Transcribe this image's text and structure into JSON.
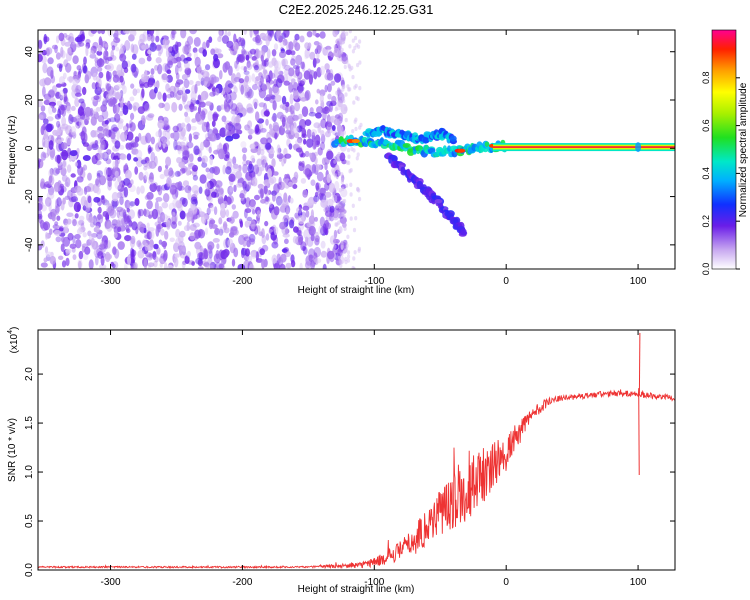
{
  "title": "C2E2.2025.246.12.25.G31",
  "chart_data": [
    {
      "type": "heatmap",
      "title": "C2E2.2025.246.12.25.G31",
      "xlabel": "Height of straight line (km)",
      "ylabel": "Frequency (Hz)",
      "xlim": [
        -355,
        128
      ],
      "ylim": [
        -50,
        49
      ],
      "x_ticks": [
        -300,
        -200,
        -100,
        0,
        100
      ],
      "x_tick_labels": [
        "-300",
        "-200",
        "-100",
        "0",
        "100"
      ],
      "y_ticks": [
        -40,
        -20,
        0,
        20,
        40
      ],
      "y_tick_labels": [
        "-40",
        "-20",
        "0",
        "20",
        "40"
      ],
      "colorbar": {
        "label": "Normalized spectral amplitude",
        "range": [
          0,
          1
        ],
        "ticks": [
          0.0,
          0.2,
          0.4,
          0.6,
          0.8
        ],
        "tick_labels": [
          "0.0",
          "0.2",
          "0.4",
          "0.6",
          "0.8"
        ]
      },
      "features": {
        "noise_region_x": [
          -355,
          -130
        ],
        "noise_amplitude": 0.1,
        "carrier_line": {
          "x": [
            -10,
            128
          ],
          "freq": 0.5,
          "amplitude": 0.95
        },
        "main_branch": [
          [
            -130,
            3
          ],
          [
            -110,
            3
          ],
          [
            -95,
            2
          ],
          [
            -80,
            1
          ],
          [
            -65,
            -1
          ],
          [
            -50,
            -2
          ],
          [
            -35,
            -1
          ],
          [
            -25,
            0
          ],
          [
            -10,
            1
          ],
          [
            0,
            1
          ]
        ],
        "upper_branch": [
          [
            -105,
            6
          ],
          [
            -95,
            7
          ],
          [
            -85,
            6
          ],
          [
            -75,
            5
          ],
          [
            -65,
            4
          ],
          [
            -55,
            5
          ],
          [
            -48,
            6
          ],
          [
            -40,
            3
          ]
        ],
        "lower_branch": [
          [
            -90,
            -3
          ],
          [
            -80,
            -8
          ],
          [
            -70,
            -13
          ],
          [
            -60,
            -18
          ],
          [
            -52,
            -22
          ],
          [
            -45,
            -27
          ],
          [
            -38,
            -31
          ],
          [
            -32,
            -35
          ]
        ]
      }
    },
    {
      "type": "line",
      "xlabel": "Height of straight line (km)",
      "ylabel": "SNR (10 * v/v)",
      "y_multiplier": "(x10",
      "y_multiplier_exponent": "4",
      "y_multiplier_close": ")",
      "xlim": [
        -355,
        128
      ],
      "ylim": [
        0,
        2.45
      ],
      "x_ticks": [
        -300,
        -200,
        -100,
        0,
        100
      ],
      "x_tick_labels": [
        "-300",
        "-200",
        "-100",
        "0",
        "100"
      ],
      "y_ticks": [
        0.0,
        0.5,
        1.0,
        1.5,
        2.0
      ],
      "y_tick_labels": [
        "0.0",
        "0.5",
        "1.0",
        "1.5",
        "2.0"
      ],
      "color": "#ee3333",
      "envelope": {
        "x": [
          -355,
          -150,
          -110,
          -95,
          -80,
          -70,
          -60,
          -50,
          -40,
          -30,
          -20,
          -10,
          0,
          10,
          20,
          30,
          40,
          60,
          80,
          100,
          128
        ],
        "y": [
          0.03,
          0.03,
          0.05,
          0.1,
          0.2,
          0.3,
          0.45,
          0.6,
          0.7,
          0.8,
          0.95,
          1.05,
          1.2,
          1.4,
          1.6,
          1.7,
          1.75,
          1.78,
          1.8,
          1.8,
          1.75
        ],
        "noise": [
          0.008,
          0.008,
          0.03,
          0.06,
          0.1,
          0.15,
          0.2,
          0.25,
          0.28,
          0.3,
          0.3,
          0.25,
          0.2,
          0.12,
          0.07,
          0.05,
          0.03,
          0.03,
          0.03,
          0.03,
          0.03
        ]
      },
      "spikes": [
        {
          "x": 101,
          "y": 2.42
        },
        {
          "x": 100.5,
          "y": 0.97
        },
        {
          "x": -47,
          "y": 0.85
        },
        {
          "x": 5,
          "y": 1.35
        }
      ]
    }
  ]
}
